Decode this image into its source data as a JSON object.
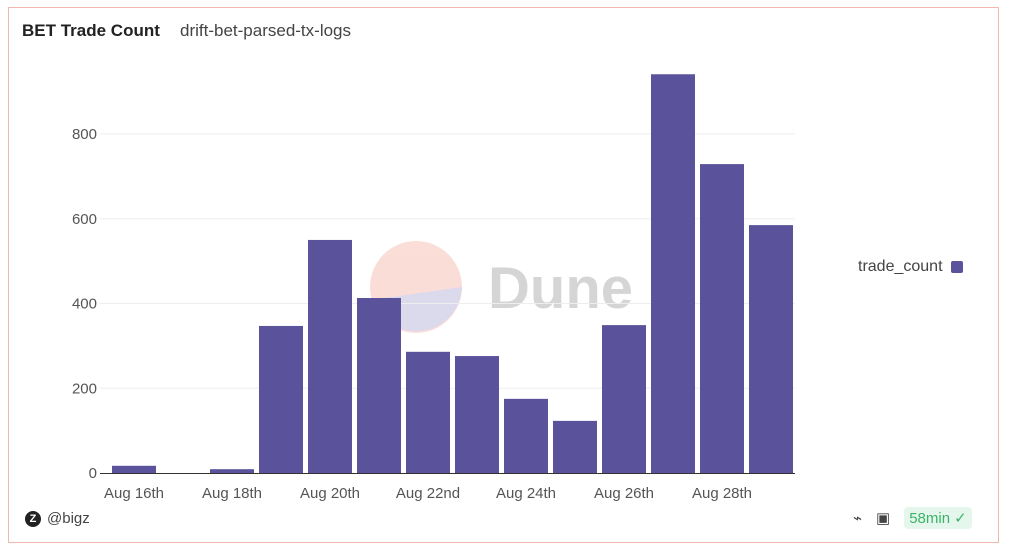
{
  "header": {
    "title": "BET Trade Count",
    "subtitle": "drift-bet-parsed-tx-logs"
  },
  "footer": {
    "author": "@bigz",
    "refresh": "58min",
    "icons": [
      "plug-icon",
      "camera-icon",
      "check-circle-icon"
    ]
  },
  "watermark": "Dune",
  "chart_data": {
    "type": "bar",
    "categories": [
      "Aug 16th",
      "Aug 17th",
      "Aug 18th",
      "Aug 19th",
      "Aug 20th",
      "Aug 21st",
      "Aug 22nd",
      "Aug 23rd",
      "Aug 24th",
      "Aug 25th",
      "Aug 26th",
      "Aug 27th",
      "Aug 28th",
      "Aug 29th"
    ],
    "x_tick_labels": [
      "Aug 16th",
      "Aug 18th",
      "Aug 20th",
      "Aug 22nd",
      "Aug 24th",
      "Aug 26th",
      "Aug 28th"
    ],
    "series": [
      {
        "name": "trade_count",
        "color": "#5a539b",
        "values": [
          17,
          0,
          9,
          347,
          550,
          413,
          286,
          276,
          175,
          123,
          349,
          941,
          729,
          585
        ]
      }
    ],
    "y_ticks": [
      0,
      200,
      400,
      600,
      800
    ],
    "ylim": [
      0,
      950
    ],
    "grid": true,
    "legend": "right"
  }
}
